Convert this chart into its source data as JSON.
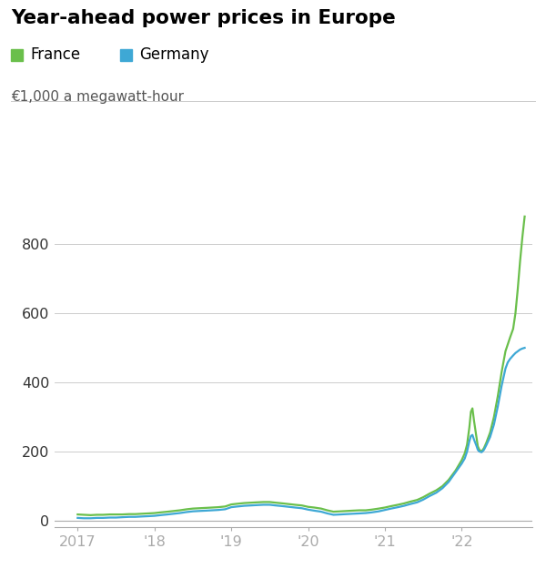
{
  "title": "Year-ahead power prices in Europe",
  "ylabel": "€1,000 a megawatt-hour",
  "background_color": "#ffffff",
  "france_color": "#6abf4b",
  "germany_color": "#3ea8d5",
  "ylim": [
    -18,
    920
  ],
  "yticks": [
    0,
    200,
    400,
    600,
    800
  ],
  "x_tick_labels": [
    "2017",
    "'18",
    "'19",
    "'20",
    "'21",
    "'22"
  ],
  "x_tick_positions": [
    2017,
    2018,
    2019,
    2020,
    2021,
    2022
  ],
  "xlim": [
    2016.7,
    2022.92
  ],
  "france_data": [
    [
      2017.0,
      18
    ],
    [
      2017.08,
      17
    ],
    [
      2017.17,
      16
    ],
    [
      2017.25,
      17
    ],
    [
      2017.33,
      17
    ],
    [
      2017.42,
      18
    ],
    [
      2017.5,
      18
    ],
    [
      2017.58,
      18
    ],
    [
      2017.67,
      19
    ],
    [
      2017.75,
      19
    ],
    [
      2017.83,
      20
    ],
    [
      2017.92,
      21
    ],
    [
      2018.0,
      22
    ],
    [
      2018.08,
      24
    ],
    [
      2018.17,
      26
    ],
    [
      2018.25,
      28
    ],
    [
      2018.33,
      30
    ],
    [
      2018.42,
      33
    ],
    [
      2018.5,
      35
    ],
    [
      2018.58,
      36
    ],
    [
      2018.67,
      37
    ],
    [
      2018.75,
      38
    ],
    [
      2018.83,
      39
    ],
    [
      2018.92,
      41
    ],
    [
      2019.0,
      47
    ],
    [
      2019.08,
      49
    ],
    [
      2019.17,
      51
    ],
    [
      2019.25,
      52
    ],
    [
      2019.33,
      53
    ],
    [
      2019.42,
      54
    ],
    [
      2019.5,
      54
    ],
    [
      2019.58,
      52
    ],
    [
      2019.67,
      50
    ],
    [
      2019.75,
      48
    ],
    [
      2019.83,
      46
    ],
    [
      2019.92,
      44
    ],
    [
      2020.0,
      40
    ],
    [
      2020.08,
      38
    ],
    [
      2020.17,
      35
    ],
    [
      2020.25,
      30
    ],
    [
      2020.33,
      26
    ],
    [
      2020.42,
      27
    ],
    [
      2020.5,
      28
    ],
    [
      2020.58,
      29
    ],
    [
      2020.67,
      30
    ],
    [
      2020.75,
      30
    ],
    [
      2020.83,
      32
    ],
    [
      2020.92,
      35
    ],
    [
      2021.0,
      38
    ],
    [
      2021.08,
      42
    ],
    [
      2021.17,
      46
    ],
    [
      2021.25,
      50
    ],
    [
      2021.33,
      55
    ],
    [
      2021.42,
      60
    ],
    [
      2021.5,
      68
    ],
    [
      2021.58,
      78
    ],
    [
      2021.67,
      88
    ],
    [
      2021.75,
      100
    ],
    [
      2021.83,
      118
    ],
    [
      2021.92,
      145
    ],
    [
      2022.0,
      175
    ],
    [
      2022.04,
      195
    ],
    [
      2022.07,
      220
    ],
    [
      2022.1,
      270
    ],
    [
      2022.12,
      315
    ],
    [
      2022.14,
      325
    ],
    [
      2022.16,
      290
    ],
    [
      2022.19,
      245
    ],
    [
      2022.21,
      215
    ],
    [
      2022.23,
      205
    ],
    [
      2022.26,
      200
    ],
    [
      2022.29,
      210
    ],
    [
      2022.32,
      225
    ],
    [
      2022.37,
      255
    ],
    [
      2022.42,
      300
    ],
    [
      2022.47,
      360
    ],
    [
      2022.52,
      430
    ],
    [
      2022.57,
      490
    ],
    [
      2022.6,
      510
    ],
    [
      2022.63,
      530
    ],
    [
      2022.67,
      555
    ],
    [
      2022.7,
      600
    ],
    [
      2022.73,
      670
    ],
    [
      2022.76,
      750
    ],
    [
      2022.79,
      820
    ],
    [
      2022.82,
      880
    ]
  ],
  "germany_data": [
    [
      2017.0,
      8
    ],
    [
      2017.08,
      7
    ],
    [
      2017.17,
      7
    ],
    [
      2017.25,
      8
    ],
    [
      2017.33,
      8
    ],
    [
      2017.42,
      9
    ],
    [
      2017.5,
      9
    ],
    [
      2017.58,
      10
    ],
    [
      2017.67,
      11
    ],
    [
      2017.75,
      11
    ],
    [
      2017.83,
      12
    ],
    [
      2017.92,
      13
    ],
    [
      2018.0,
      14
    ],
    [
      2018.08,
      16
    ],
    [
      2018.17,
      18
    ],
    [
      2018.25,
      20
    ],
    [
      2018.33,
      22
    ],
    [
      2018.42,
      25
    ],
    [
      2018.5,
      27
    ],
    [
      2018.58,
      28
    ],
    [
      2018.67,
      29
    ],
    [
      2018.75,
      30
    ],
    [
      2018.83,
      31
    ],
    [
      2018.92,
      33
    ],
    [
      2019.0,
      39
    ],
    [
      2019.08,
      41
    ],
    [
      2019.17,
      43
    ],
    [
      2019.25,
      44
    ],
    [
      2019.33,
      45
    ],
    [
      2019.42,
      46
    ],
    [
      2019.5,
      46
    ],
    [
      2019.58,
      44
    ],
    [
      2019.67,
      42
    ],
    [
      2019.75,
      40
    ],
    [
      2019.83,
      38
    ],
    [
      2019.92,
      36
    ],
    [
      2020.0,
      32
    ],
    [
      2020.08,
      29
    ],
    [
      2020.17,
      26
    ],
    [
      2020.25,
      21
    ],
    [
      2020.33,
      17
    ],
    [
      2020.42,
      18
    ],
    [
      2020.5,
      19
    ],
    [
      2020.58,
      20
    ],
    [
      2020.67,
      21
    ],
    [
      2020.75,
      22
    ],
    [
      2020.83,
      24
    ],
    [
      2020.92,
      27
    ],
    [
      2021.0,
      31
    ],
    [
      2021.08,
      35
    ],
    [
      2021.17,
      39
    ],
    [
      2021.25,
      43
    ],
    [
      2021.33,
      48
    ],
    [
      2021.42,
      53
    ],
    [
      2021.5,
      61
    ],
    [
      2021.58,
      71
    ],
    [
      2021.67,
      81
    ],
    [
      2021.75,
      94
    ],
    [
      2021.83,
      112
    ],
    [
      2021.92,
      140
    ],
    [
      2022.0,
      165
    ],
    [
      2022.04,
      180
    ],
    [
      2022.07,
      200
    ],
    [
      2022.1,
      230
    ],
    [
      2022.12,
      245
    ],
    [
      2022.14,
      248
    ],
    [
      2022.16,
      235
    ],
    [
      2022.19,
      218
    ],
    [
      2022.21,
      205
    ],
    [
      2022.23,
      200
    ],
    [
      2022.26,
      198
    ],
    [
      2022.29,
      205
    ],
    [
      2022.32,
      218
    ],
    [
      2022.37,
      242
    ],
    [
      2022.42,
      278
    ],
    [
      2022.47,
      330
    ],
    [
      2022.52,
      390
    ],
    [
      2022.57,
      440
    ],
    [
      2022.6,
      458
    ],
    [
      2022.63,
      468
    ],
    [
      2022.67,
      478
    ],
    [
      2022.7,
      485
    ],
    [
      2022.73,
      490
    ],
    [
      2022.76,
      495
    ],
    [
      2022.79,
      498
    ],
    [
      2022.82,
      500
    ]
  ]
}
